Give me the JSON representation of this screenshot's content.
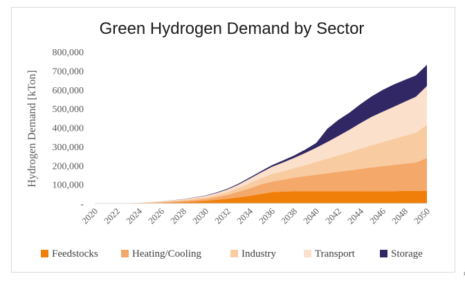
{
  "corner_note": "xx",
  "chart_data": {
    "type": "area",
    "title": "Green Hydrogen Demand by Sector",
    "xlabel": "",
    "ylabel": "Hydrogen Demand [kTon]",
    "stacked": true,
    "legend_position": "bottom",
    "grid": false,
    "ylim": [
      0,
      800000
    ],
    "yticks": [
      0,
      100000,
      200000,
      300000,
      400000,
      500000,
      600000,
      700000,
      800000
    ],
    "ytick_labels": [
      "-",
      "100,000",
      "200,000",
      "300,000",
      "400,000",
      "500,000",
      "600,000",
      "700,000",
      "800,000"
    ],
    "x": [
      2020,
      2021,
      2022,
      2023,
      2024,
      2025,
      2026,
      2027,
      2028,
      2029,
      2030,
      2031,
      2032,
      2033,
      2034,
      2035,
      2036,
      2037,
      2038,
      2039,
      2040,
      2041,
      2042,
      2043,
      2044,
      2045,
      2046,
      2047,
      2048,
      2049,
      2050
    ],
    "xtick_labels": [
      "2020",
      "2022",
      "2024",
      "2026",
      "2028",
      "2030",
      "2032",
      "2034",
      "2036",
      "2038",
      "2040",
      "2042",
      "2044",
      "2046",
      "2048",
      "2050"
    ],
    "xtick_values": [
      2020,
      2022,
      2024,
      2026,
      2028,
      2030,
      2032,
      2034,
      2036,
      2038,
      2040,
      2042,
      2044,
      2046,
      2048,
      2050
    ],
    "series": [
      {
        "name": "Feedstocks",
        "color": "#f07f09",
        "values": [
          0,
          0,
          0,
          500,
          1000,
          2000,
          3000,
          5000,
          7000,
          10000,
          14000,
          19000,
          25000,
          32000,
          40000,
          50000,
          60000,
          63000,
          64000,
          64000,
          64000,
          64000,
          64000,
          64000,
          64000,
          65000,
          65000,
          65000,
          66000,
          66000,
          67000
        ]
      },
      {
        "name": "Heating/Cooling",
        "color": "#f4a86a",
        "values": [
          0,
          0,
          0,
          500,
          1500,
          2500,
          3500,
          5000,
          6500,
          8500,
          10000,
          15000,
          20000,
          30000,
          40000,
          50000,
          55000,
          62000,
          72000,
          80000,
          88000,
          95000,
          103000,
          110000,
          118000,
          125000,
          132000,
          138000,
          144000,
          150000,
          173000
        ]
      },
      {
        "name": "Industry",
        "color": "#f8cba0",
        "values": [
          0,
          0,
          0,
          500,
          1000,
          1500,
          2500,
          3500,
          5000,
          7000,
          9000,
          11000,
          15000,
          20000,
          27000,
          33000,
          40000,
          45000,
          50000,
          58000,
          67000,
          77000,
          87000,
          97000,
          107000,
          117000,
          127000,
          137000,
          147000,
          157000,
          175000
        ]
      },
      {
        "name": "Transport",
        "color": "#fbe0cc",
        "values": [
          0,
          0,
          0,
          0,
          500,
          1000,
          1500,
          2500,
          3500,
          5000,
          7000,
          10000,
          14000,
          18000,
          24000,
          30000,
          38000,
          46000,
          54000,
          64000,
          75000,
          88000,
          102000,
          118000,
          135000,
          150000,
          160000,
          170000,
          180000,
          190000,
          205000
        ]
      },
      {
        "name": "Storage",
        "color": "#302764",
        "values": [
          0,
          0,
          0,
          0,
          0,
          0,
          500,
          500,
          1000,
          1500,
          2000,
          3000,
          4000,
          5000,
          6000,
          7000,
          9000,
          11000,
          13000,
          18000,
          25000,
          70000,
          85000,
          90000,
          100000,
          108000,
          115000,
          118000,
          115000,
          113000,
          112000
        ]
      }
    ]
  }
}
